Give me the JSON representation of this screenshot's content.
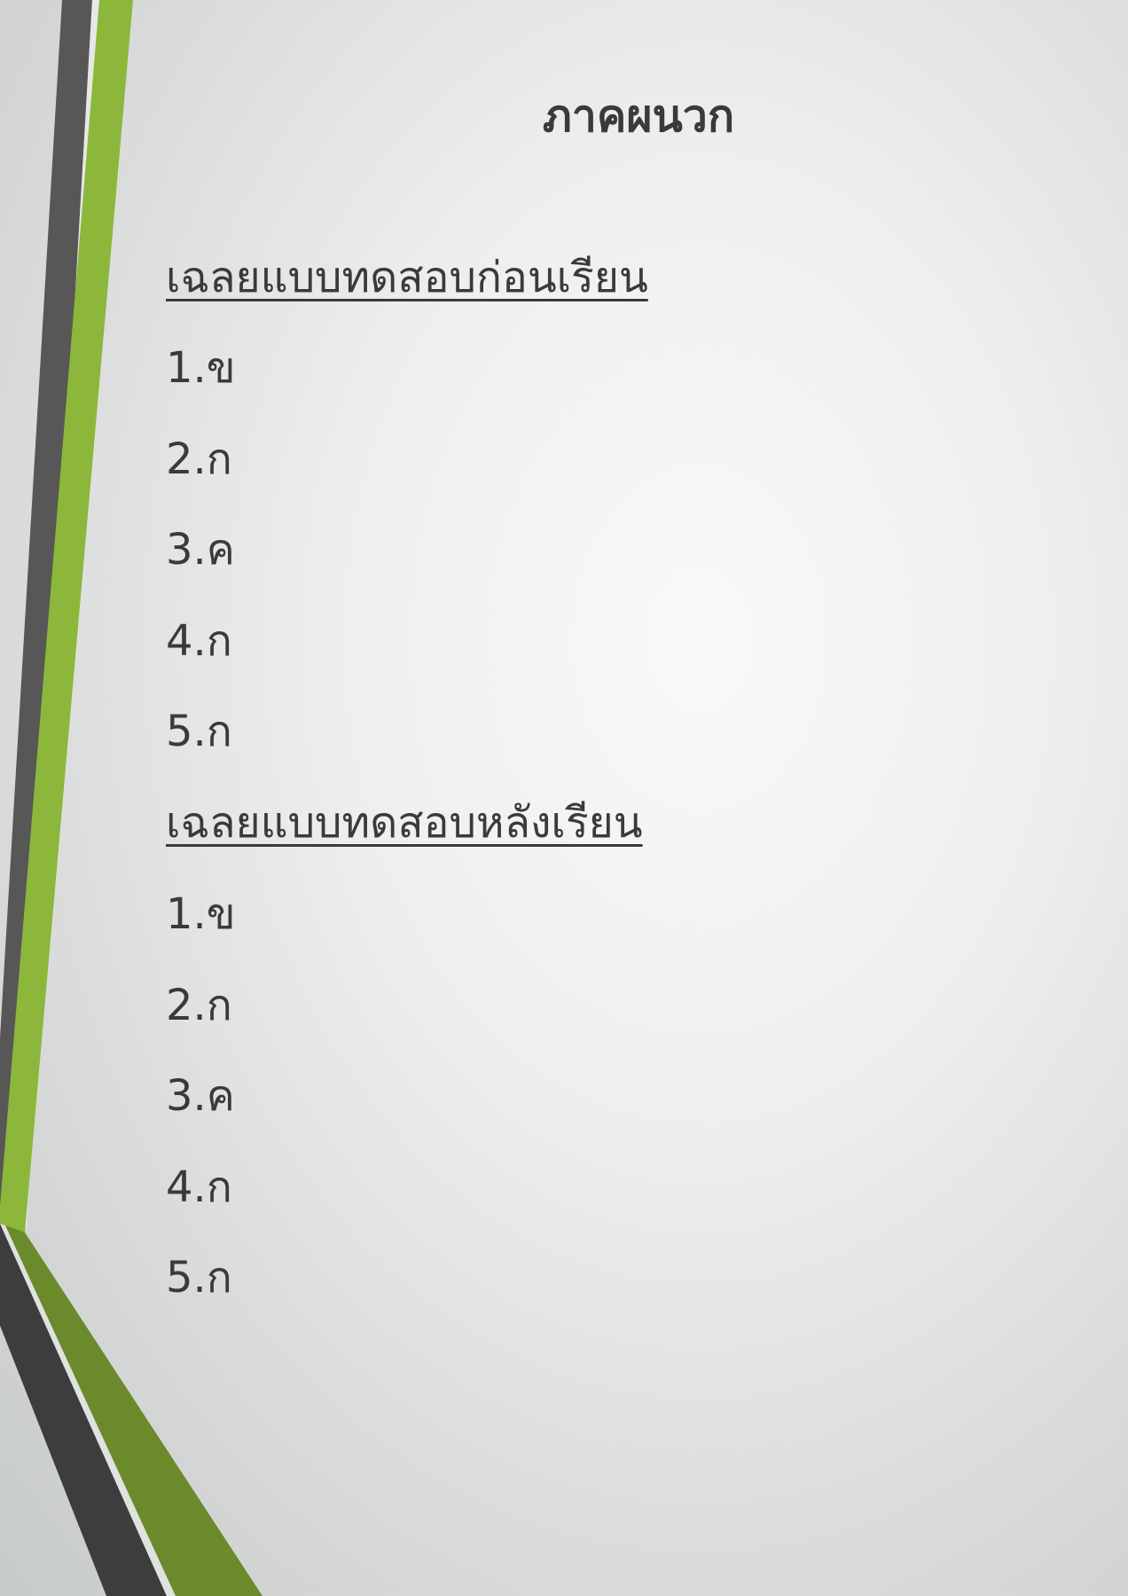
{
  "document": {
    "title": "ภาคผนวก",
    "sections": [
      {
        "heading": "เฉลยแบบทดสอบก่อนเรียน",
        "answers": [
          "1.ข",
          "2.ก",
          "3.ค",
          "4.ก",
          "5.ก"
        ]
      },
      {
        "heading": "เฉลยแบบทดสอบหลังเรียน",
        "answers": [
          "1.ข",
          "2.ก",
          "3.ค",
          "4.ก",
          "5.ก"
        ]
      }
    ]
  },
  "colors": {
    "text": "#3a3a3a",
    "stripe_dark": "#575757",
    "stripe_green": "#8cb73a",
    "stripe_dark_green": "#6b8a2b",
    "stripe_charcoal": "#3d3d3d"
  }
}
